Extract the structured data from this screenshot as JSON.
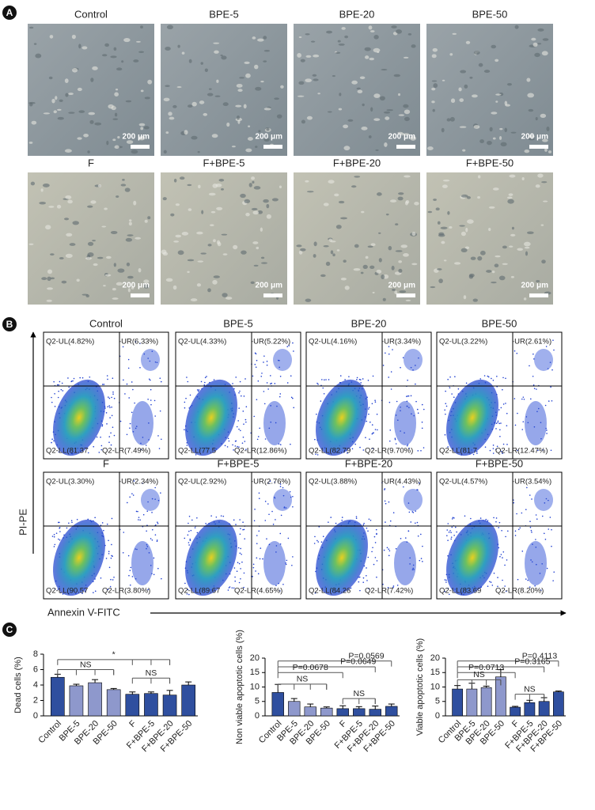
{
  "panel_a": {
    "label": "A",
    "scale_label": "200 μm",
    "titles": [
      "Control",
      "BPE-5",
      "BPE-20",
      "BPE-50",
      "F",
      "F+BPE-5",
      "F+BPE-20",
      "F+BPE-50"
    ]
  },
  "panel_b": {
    "label": "B",
    "y_label": "PI-PE",
    "x_label": "Annexin V-FITC",
    "plots": [
      {
        "title": "Control",
        "ul": "Q2-UL(4.82%)",
        "ur": "-UR(6.33%)",
        "ll": "Q2-LL(81.37",
        "lr": "Q2-LR(7.49%)"
      },
      {
        "title": "BPE-5",
        "ul": "Q2-UL(4.33%)",
        "ur": "-UR(5.22%)",
        "ll": "Q2-LL(77.5",
        "lr": "Q2-LR(12.86%)"
      },
      {
        "title": "BPE-20",
        "ul": "Q2-UL(4.16%)",
        "ur": "-UR(3.34%)",
        "ll": "Q2-LL(82.79",
        "lr": "Q2-LR(9.70%)"
      },
      {
        "title": "BPE-50",
        "ul": "Q2-UL(3.22%)",
        "ur": "-UR(2.61%)",
        "ll": "Q2-LL(81.7",
        "lr": "Q2-LR(12.47%)"
      },
      {
        "title": "F",
        "ul": "Q2-UL(3.30%)",
        "ur": "-UR(2.34%)",
        "ll": "Q2-LL(90.57",
        "lr": "Q2-LR(3.80%)"
      },
      {
        "title": "F+BPE-5",
        "ul": "Q2-UL(2.92%)",
        "ur": "-UR(2.76%)",
        "ll": "Q2-LL(89.67",
        "lr": "Q2-LR(4.65%)"
      },
      {
        "title": "F+BPE-20",
        "ul": "Q2-UL(3.88%)",
        "ur": "-UR(4.43%)",
        "ll": "Q2-LL(84.26",
        "lr": "Q2-LR(7.42%)"
      },
      {
        "title": "F+BPE-50",
        "ul": "Q2-UL(4.57%)",
        "ur": "-UR(3.54%)",
        "ll": "Q2-LL(83.69",
        "lr": "Q2-LR(8.20%)"
      }
    ]
  },
  "panel_c": {
    "label": "C"
  },
  "chart_data": [
    {
      "type": "bar",
      "y_label": "Dead cells (%)",
      "categories": [
        "Control",
        "BPE-5",
        "BPE-20",
        "BPE-50",
        "F",
        "F+BPE-5",
        "F+BPE-20",
        "F+BPE-50"
      ],
      "values": [
        5.0,
        3.9,
        4.3,
        3.4,
        2.8,
        2.9,
        2.7,
        4.0
      ],
      "errors": [
        0.4,
        0.2,
        0.4,
        0.15,
        0.3,
        0.2,
        0.6,
        0.4
      ],
      "colors": [
        "#2f4f9f",
        "#8e98cc",
        "#8e98cc",
        "#8e98cc",
        "#2f4f9f",
        "#2f4f9f",
        "#2f4f9f",
        "#2f4f9f"
      ],
      "ylim": [
        0,
        8
      ],
      "yticks": [
        0,
        2,
        4,
        6,
        8
      ],
      "annotations": [
        "NS",
        "*",
        "NS"
      ]
    },
    {
      "type": "bar",
      "y_label": "Non viable apoptotic cells (%)",
      "categories": [
        "Control",
        "BPE-5",
        "BPE-20",
        "BPE-50",
        "F",
        "F+BPE-5",
        "F+BPE-20",
        "F+BPE-50"
      ],
      "values": [
        8.1,
        5.0,
        3.1,
        2.7,
        2.5,
        2.5,
        2.3,
        3.3
      ],
      "errors": [
        2.8,
        1.0,
        1.0,
        0.4,
        1.0,
        0.7,
        1.1,
        0.8
      ],
      "colors": [
        "#2f4f9f",
        "#8e98cc",
        "#8e98cc",
        "#8e98cc",
        "#2f4f9f",
        "#2f4f9f",
        "#2f4f9f",
        "#2f4f9f"
      ],
      "ylim": [
        0,
        20
      ],
      "yticks": [
        0,
        5,
        10,
        15,
        20
      ],
      "annotations": [
        "P=0.0569",
        "P=0.0649",
        "P=0.0678",
        "NS",
        "NS"
      ]
    },
    {
      "type": "bar",
      "y_label": "Viable apoptotic cells (%)",
      "categories": [
        "Control",
        "BPE-5",
        "BPE-20",
        "BPE-50",
        "F",
        "F+BPE-5",
        "F+BPE-20",
        "F+BPE-50"
      ],
      "values": [
        9.3,
        9.3,
        9.8,
        13.5,
        3.0,
        4.6,
        5.0,
        8.3
      ],
      "errors": [
        1.2,
        2.0,
        0.5,
        2.5,
        0.3,
        0.8,
        1.3,
        0.3
      ],
      "colors": [
        "#2f4f9f",
        "#8e98cc",
        "#8e98cc",
        "#8e98cc",
        "#2f4f9f",
        "#2f4f9f",
        "#2f4f9f",
        "#2f4f9f"
      ],
      "ylim": [
        0,
        20
      ],
      "yticks": [
        0,
        5,
        10,
        15,
        20
      ],
      "annotations": [
        "P=0.4113",
        "P=0.3165",
        "P=0.0713",
        "NS",
        "NS"
      ]
    }
  ]
}
